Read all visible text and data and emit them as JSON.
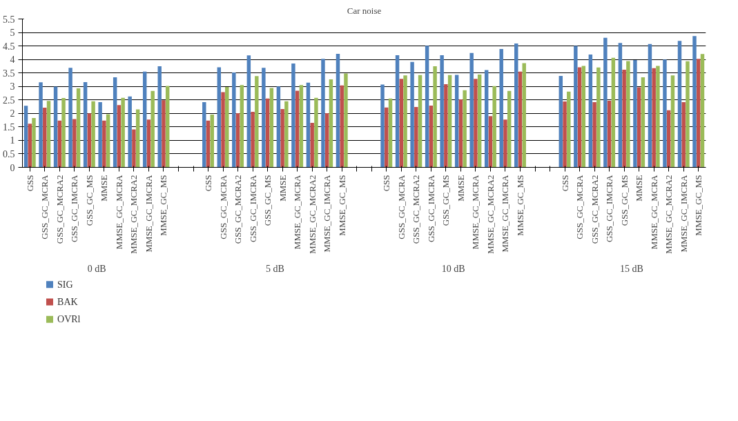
{
  "chart_data": {
    "type": "bar",
    "title": "Car noise",
    "categories": [
      "GSS",
      "GSS_GC_MCRA",
      "GSS_GC_MCRA2",
      "GSS_GC_IMCRA",
      "GSS_GC_MS",
      "MMSE",
      "MMSE_GC_MCRA",
      "MMSE_GC_MCRA2",
      "MMSE_GC_IMCRA",
      "MMSE_GC_MS",
      null,
      null,
      "GSS",
      "GSS_GC_MCRA",
      "GSS_GC_MCRA2",
      "GSS_GC_IMCRA",
      "GSS_GC_MS",
      "MMSE",
      "MMSE_GC_MCRA",
      "MMSE_GC_MCRA2",
      "MMSE_GC_IMCRA",
      "MMSE_GC_MS",
      null,
      null,
      "GSS",
      "GSS_GC_MCRA",
      "GSS_GC_MCRA2",
      "GSS_GC_IMCRA",
      "GSS_GC_MS",
      "MMSE",
      "MMSE_GC_MCRA",
      "MMSE_GC_MCRA2",
      "MMSE_GC_IMCRA",
      "MMSE_GC_MS",
      null,
      null,
      "GSS",
      "GSS_GC_MCRA",
      "GSS_GC_MCRA2",
      "GSS_GC_IMCRA",
      "GSS_GC_MS",
      "MMSE",
      "MMSE_GC_MCRA",
      "MMSE_GC_MCRA2",
      "MMSE_GC_IMCRA",
      "MMSE_GC_MS"
    ],
    "series": [
      {
        "name": "SIG",
        "color": "#4f81bd",
        "values": [
          2.28,
          3.15,
          2.99,
          3.69,
          3.16,
          2.42,
          3.34,
          2.63,
          3.55,
          3.75,
          null,
          null,
          2.42,
          3.71,
          3.52,
          4.15,
          3.69,
          3.0,
          3.85,
          3.14,
          4.02,
          4.21,
          null,
          null,
          3.07,
          4.16,
          3.91,
          4.51,
          4.16,
          3.43,
          4.24,
          3.61,
          4.39,
          4.59,
          null,
          null,
          3.39,
          4.5,
          4.18,
          4.8,
          4.61,
          3.98,
          4.57,
          4.0,
          4.69,
          4.87
        ]
      },
      {
        "name": "BAK",
        "color": "#c0504d",
        "values": [
          1.62,
          2.21,
          1.73,
          1.79,
          2.0,
          1.73,
          2.31,
          1.41,
          1.77,
          2.49,
          null,
          null,
          1.73,
          2.79,
          2.01,
          2.06,
          2.55,
          2.16,
          2.84,
          1.65,
          2.01,
          3.04,
          null,
          null,
          2.22,
          3.28,
          2.24,
          2.29,
          3.08,
          2.52,
          3.28,
          1.9,
          1.77,
          3.55,
          null,
          null,
          2.44,
          3.71,
          2.42,
          2.47,
          3.62,
          2.97,
          3.68,
          2.12,
          2.42,
          4.02
        ]
      },
      {
        "name": "OVRl",
        "color": "#9bbb59",
        "values": [
          1.83,
          2.46,
          2.57,
          2.93,
          2.45,
          1.97,
          2.58,
          2.15,
          2.83,
          3.02,
          null,
          null,
          1.96,
          2.98,
          3.05,
          3.38,
          2.94,
          2.45,
          3.05,
          2.58,
          3.26,
          3.48,
          null,
          null,
          2.55,
          3.41,
          3.42,
          3.75,
          3.42,
          2.86,
          3.44,
          3.01,
          2.83,
          3.86,
          null,
          null,
          2.81,
          3.76,
          3.7,
          4.06,
          3.94,
          3.34,
          3.76,
          3.41,
          3.93,
          4.2
        ]
      }
    ],
    "annotations": [
      "0 dB",
      "5 dB",
      "10 dB",
      "15 dB"
    ],
    "ylim": [
      0,
      5.5
    ],
    "yticks": [
      0,
      0.5,
      1,
      1.5,
      2,
      2.5,
      3,
      3.5,
      4,
      4.5,
      5,
      5.5
    ],
    "grid": "y",
    "legend": "bottom left"
  }
}
